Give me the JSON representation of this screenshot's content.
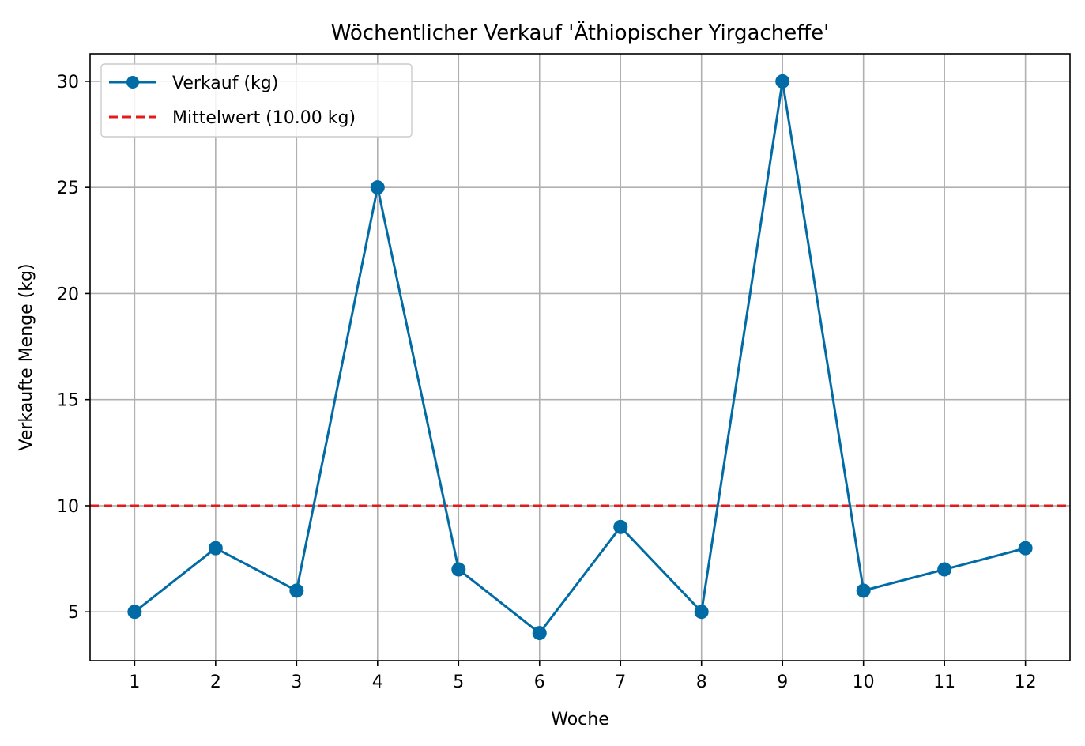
{
  "chart_data": {
    "type": "line",
    "title": "Wöchentlicher Verkauf 'Äthiopischer Yirgacheffe'",
    "xlabel": "Woche",
    "ylabel": "Verkaufte Menge (kg)",
    "x": [
      1,
      2,
      3,
      4,
      5,
      6,
      7,
      8,
      9,
      10,
      11,
      12
    ],
    "xtick_labels": [
      "1",
      "2",
      "3",
      "4",
      "5",
      "6",
      "7",
      "8",
      "9",
      "10",
      "11",
      "12"
    ],
    "ytick_values": [
      5,
      10,
      15,
      20,
      25,
      30
    ],
    "ytick_labels": [
      "5",
      "10",
      "15",
      "20",
      "25",
      "30"
    ],
    "xlim": [
      0.45,
      12.55
    ],
    "ylim": [
      2.7,
      31.3
    ],
    "grid": true,
    "legend_position": "top-left",
    "series": [
      {
        "name": "Verkauf (kg)",
        "values": [
          5,
          8,
          6,
          25,
          7,
          4,
          9,
          5,
          30,
          6,
          7,
          8
        ],
        "color": "#006BA4",
        "marker": "circle",
        "line_style": "solid"
      }
    ],
    "reference_lines": [
      {
        "name": "Mittelwert (10.00 kg)",
        "y": 10,
        "color": "#E41A1C",
        "line_style": "dashed"
      }
    ]
  }
}
